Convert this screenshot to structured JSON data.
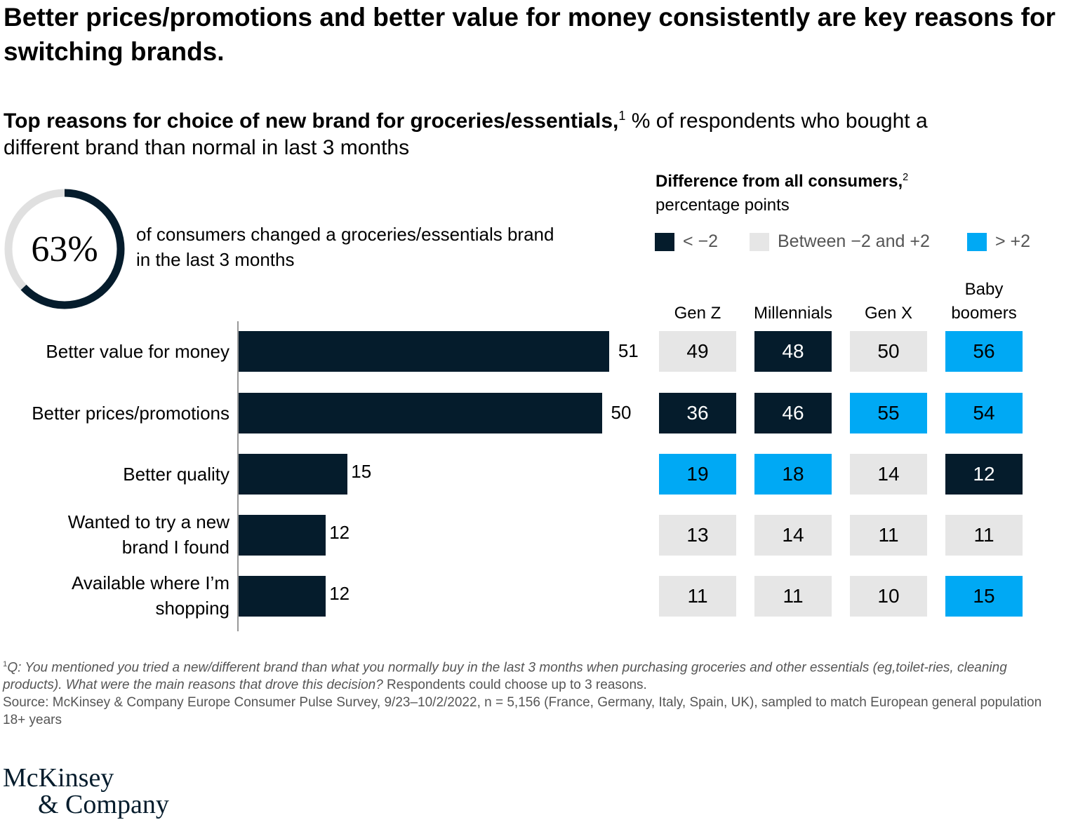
{
  "title": "Better prices/promotions and better value for money consistently are key reasons for switching brands.",
  "subtitle_bold": "Top reasons for choice of new brand for groceries/essentials,",
  "subtitle_sup": "1",
  "subtitle_rest": " % of respondents who bought a different brand than normal in last 3 months",
  "donut": {
    "value": 63,
    "label": "63%",
    "text": "of consumers changed a groceries/essentials brand in the last 3 months"
  },
  "diff_title": "Difference from all consumers,",
  "diff_sup": "2",
  "diff_sub": "percentage points",
  "legend": [
    {
      "label": "< −2",
      "color": "#051c2c"
    },
    {
      "label": "Between −2 and +2",
      "color": "#e6e6e6"
    },
    {
      "label": "> +2",
      "color": "#00a9f4"
    }
  ],
  "colors": {
    "dark": "#051c2c",
    "light": "#e6e6e6",
    "blue": "#00a9f4"
  },
  "chart_data": {
    "type": "bar",
    "orientation": "horizontal",
    "categories": [
      "Better value for money",
      "Better prices/promotions",
      "Better quality",
      "Wanted to try a new brand I found",
      "Available where I’m shopping"
    ],
    "values": [
      51,
      50,
      15,
      12,
      12
    ],
    "heatmap": {
      "type": "heatmap",
      "columns": [
        "Gen Z",
        "Millennials",
        "Gen X",
        "Baby boomers"
      ],
      "values": [
        [
          49,
          48,
          50,
          56
        ],
        [
          36,
          46,
          55,
          54
        ],
        [
          19,
          18,
          14,
          12
        ],
        [
          13,
          14,
          11,
          11
        ],
        [
          11,
          11,
          10,
          15
        ]
      ],
      "classes": [
        [
          "light",
          "dark",
          "light",
          "blue"
        ],
        [
          "dark",
          "dark",
          "blue",
          "blue"
        ],
        [
          "blue",
          "blue",
          "light",
          "dark"
        ],
        [
          "light",
          "light",
          "light",
          "light"
        ],
        [
          "light",
          "light",
          "light",
          "blue"
        ]
      ]
    }
  },
  "footnote1_sup": "1",
  "footnote1_q": "Q: You mentioned you tried a new/different brand than what you normally buy in the last 3 months when purchasing groceries and other essentials (eg,toilet-ries, cleaning products). What were the main reasons that drove this decision?",
  "footnote1_rest": " Respondents could choose up to 3 reasons.",
  "source": "Source: McKinsey & Company Europe Consumer Pulse Survey, 9/23–10/2/2022, n = 5,156 (France, Germany, Italy, Spain, UK), sampled to match European general population 18+ years",
  "logo": {
    "line1": "McKinsey",
    "line2": "& Company"
  }
}
